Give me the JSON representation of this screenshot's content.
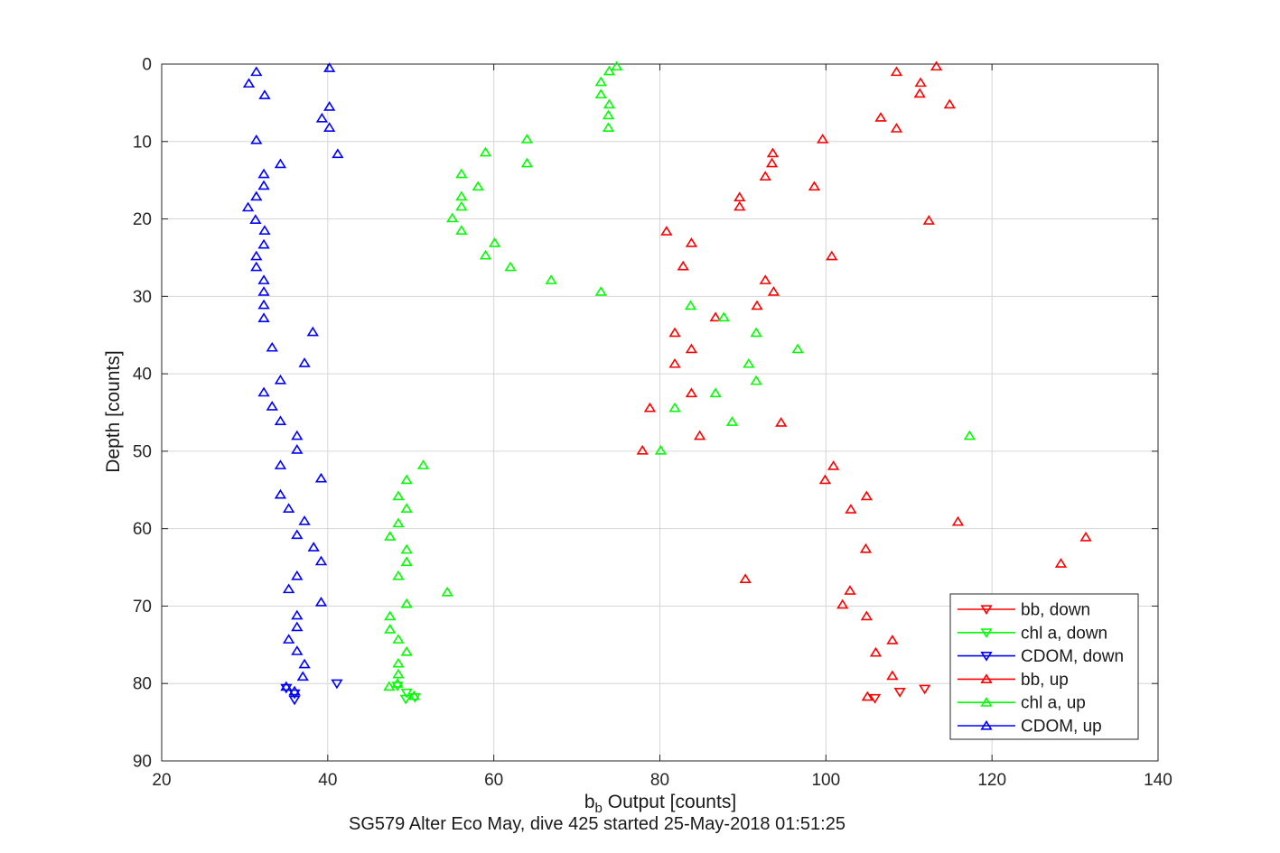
{
  "figure": {
    "background": "#ffffff",
    "axis_color": "#262626",
    "grid_color": "#d6d6d6",
    "xlabel_main": "b",
    "xlabel_sub": "b",
    "xlabel_rest": " Output [counts]"
  },
  "chart_data": {
    "type": "scatter",
    "title": "SG579 Alter Eco May, dive 425 started 25-May-2018 01:51:25",
    "xlabel": "b_b Output [counts]",
    "ylabel": "Depth [counts]",
    "xlim": [
      20,
      140
    ],
    "ylim": [
      0,
      90
    ],
    "y_inverted": true,
    "x_ticks": [
      20,
      40,
      60,
      80,
      100,
      120,
      140
    ],
    "y_ticks": [
      0,
      10,
      20,
      30,
      40,
      50,
      60,
      70,
      80,
      90
    ],
    "grid": true,
    "legend_position": "lower right",
    "series": [
      {
        "name": "bb, down",
        "color": "#ff0000",
        "marker": "triangle-down",
        "points": [
          [
            108.9,
            81.1
          ],
          [
            111.9,
            80.7
          ],
          [
            105.9,
            81.9
          ]
        ]
      },
      {
        "name": "chl a, down",
        "color": "#00ff00",
        "marker": "triangle-down",
        "points": [
          [
            48.4,
            80.3
          ],
          [
            49.5,
            81.2
          ],
          [
            49.4,
            82.0
          ],
          [
            50.5,
            81.8
          ]
        ]
      },
      {
        "name": "CDOM, down",
        "color": "#0000ff",
        "marker": "triangle-down",
        "points": [
          [
            41.1,
            80.0
          ],
          [
            35.0,
            80.6
          ],
          [
            36.0,
            81.3
          ],
          [
            36.0,
            82.1
          ]
        ]
      },
      {
        "name": "bb, up",
        "color": "#ff0000",
        "marker": "triangle-up",
        "points": [
          [
            113.3,
            0.3
          ],
          [
            108.5,
            1.0
          ],
          [
            111.4,
            2.4
          ],
          [
            111.3,
            3.8
          ],
          [
            114.9,
            5.2
          ],
          [
            106.6,
            6.9
          ],
          [
            108.5,
            8.3
          ],
          [
            99.6,
            9.7
          ],
          [
            93.6,
            11.5
          ],
          [
            93.5,
            12.8
          ],
          [
            92.7,
            14.5
          ],
          [
            98.6,
            15.8
          ],
          [
            89.6,
            17.2
          ],
          [
            89.6,
            18.4
          ],
          [
            112.4,
            20.2
          ],
          [
            80.8,
            21.6
          ],
          [
            83.8,
            23.1
          ],
          [
            100.7,
            24.8
          ],
          [
            82.8,
            26.1
          ],
          [
            92.7,
            27.9
          ],
          [
            93.7,
            29.4
          ],
          [
            91.7,
            31.2
          ],
          [
            86.7,
            32.7
          ],
          [
            81.8,
            34.7
          ],
          [
            83.8,
            36.8
          ],
          [
            81.8,
            38.7
          ],
          [
            83.8,
            42.5
          ],
          [
            78.8,
            44.4
          ],
          [
            94.6,
            46.3
          ],
          [
            84.8,
            48.0
          ],
          [
            77.9,
            49.9
          ],
          [
            100.9,
            51.9
          ],
          [
            99.9,
            53.7
          ],
          [
            104.9,
            55.8
          ],
          [
            103.0,
            57.5
          ],
          [
            115.9,
            59.1
          ],
          [
            131.3,
            61.1
          ],
          [
            104.8,
            62.6
          ],
          [
            128.3,
            64.5
          ],
          [
            90.3,
            66.5
          ],
          [
            102.9,
            68.0
          ],
          [
            102.0,
            69.8
          ],
          [
            104.9,
            71.3
          ],
          [
            108.0,
            74.4
          ],
          [
            106.0,
            76.0
          ],
          [
            108.0,
            79.0
          ],
          [
            105.0,
            81.7
          ]
        ]
      },
      {
        "name": "chl a, up",
        "color": "#00ff00",
        "marker": "triangle-up",
        "points": [
          [
            74.8,
            0.3
          ],
          [
            73.9,
            0.9
          ],
          [
            72.9,
            2.3
          ],
          [
            72.9,
            3.9
          ],
          [
            73.9,
            5.2
          ],
          [
            73.8,
            6.6
          ],
          [
            73.8,
            8.2
          ],
          [
            64.0,
            9.7
          ],
          [
            59.0,
            11.4
          ],
          [
            64.0,
            12.8
          ],
          [
            56.1,
            14.2
          ],
          [
            58.1,
            15.8
          ],
          [
            56.1,
            17.1
          ],
          [
            56.1,
            18.4
          ],
          [
            55.0,
            19.9
          ],
          [
            56.1,
            21.5
          ],
          [
            60.1,
            23.1
          ],
          [
            59.0,
            24.7
          ],
          [
            62.0,
            26.2
          ],
          [
            66.9,
            27.9
          ],
          [
            72.9,
            29.4
          ],
          [
            83.7,
            31.2
          ],
          [
            87.7,
            32.7
          ],
          [
            91.6,
            34.7
          ],
          [
            96.6,
            36.8
          ],
          [
            90.7,
            38.7
          ],
          [
            91.6,
            40.9
          ],
          [
            86.7,
            42.5
          ],
          [
            81.8,
            44.4
          ],
          [
            88.7,
            46.2
          ],
          [
            117.3,
            48.0
          ],
          [
            80.1,
            49.9
          ],
          [
            51.5,
            51.8
          ],
          [
            49.5,
            53.7
          ],
          [
            48.5,
            55.8
          ],
          [
            49.5,
            57.4
          ],
          [
            48.5,
            59.3
          ],
          [
            47.5,
            61.0
          ],
          [
            49.5,
            62.7
          ],
          [
            49.5,
            64.3
          ],
          [
            48.5,
            66.1
          ],
          [
            54.4,
            68.2
          ],
          [
            49.5,
            69.7
          ],
          [
            47.5,
            71.3
          ],
          [
            47.5,
            73.0
          ],
          [
            48.5,
            74.3
          ],
          [
            49.5,
            75.9
          ],
          [
            48.5,
            77.4
          ],
          [
            48.5,
            78.8
          ],
          [
            48.4,
            80.0
          ],
          [
            47.4,
            80.4
          ],
          [
            50.4,
            81.6
          ]
        ]
      },
      {
        "name": "CDOM, up",
        "color": "#0000ff",
        "marker": "triangle-up",
        "points": [
          [
            40.2,
            0.5
          ],
          [
            31.4,
            1.0
          ],
          [
            30.5,
            2.5
          ],
          [
            32.4,
            4.0
          ],
          [
            40.2,
            5.5
          ],
          [
            39.3,
            7.0
          ],
          [
            40.2,
            8.2
          ],
          [
            31.4,
            9.8
          ],
          [
            41.2,
            11.6
          ],
          [
            34.3,
            12.9
          ],
          [
            32.3,
            14.2
          ],
          [
            32.3,
            15.7
          ],
          [
            31.4,
            17.1
          ],
          [
            30.4,
            18.5
          ],
          [
            31.3,
            20.1
          ],
          [
            32.4,
            21.5
          ],
          [
            32.3,
            23.3
          ],
          [
            31.4,
            24.8
          ],
          [
            31.4,
            26.2
          ],
          [
            32.3,
            27.9
          ],
          [
            32.3,
            29.4
          ],
          [
            32.3,
            31.1
          ],
          [
            32.3,
            32.8
          ],
          [
            38.2,
            34.6
          ],
          [
            33.3,
            36.6
          ],
          [
            37.2,
            38.6
          ],
          [
            34.3,
            40.8
          ],
          [
            32.3,
            42.4
          ],
          [
            33.3,
            44.2
          ],
          [
            34.3,
            46.1
          ],
          [
            36.3,
            48.0
          ],
          [
            36.3,
            49.8
          ],
          [
            34.3,
            51.8
          ],
          [
            39.2,
            53.5
          ],
          [
            34.3,
            55.6
          ],
          [
            35.3,
            57.4
          ],
          [
            37.2,
            59.0
          ],
          [
            36.3,
            60.8
          ],
          [
            38.3,
            62.4
          ],
          [
            39.2,
            64.2
          ],
          [
            36.3,
            66.1
          ],
          [
            35.3,
            67.8
          ],
          [
            39.2,
            69.5
          ],
          [
            36.3,
            71.2
          ],
          [
            36.3,
            72.7
          ],
          [
            35.3,
            74.3
          ],
          [
            36.3,
            75.8
          ],
          [
            37.2,
            77.5
          ],
          [
            37.0,
            79.1
          ],
          [
            35.0,
            80.4
          ],
          [
            36.0,
            81.0
          ]
        ]
      }
    ]
  }
}
